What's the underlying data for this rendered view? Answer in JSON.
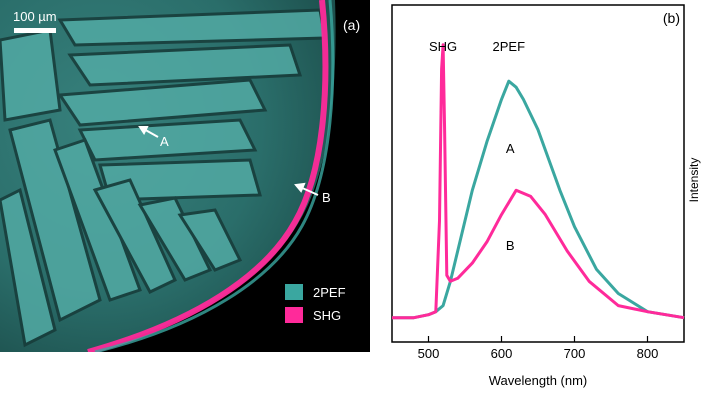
{
  "panel_a": {
    "label": "(a)",
    "scalebar_label": "100 µm",
    "arrows": [
      {
        "label": "A"
      },
      {
        "label": "B"
      }
    ],
    "legend": [
      {
        "label": "2PEF",
        "color": "#3aa7a0"
      },
      {
        "label": "SHG",
        "color": "#ff2a9a"
      }
    ],
    "colors": {
      "cyan": "#3aa7a0",
      "magenta": "#ff2a9a",
      "background": "#000000"
    }
  },
  "chart_data": {
    "type": "line",
    "panel_label": "(b)",
    "xlabel": "Wavelength (nm)",
    "ylabel": "Intensity",
    "xlim": [
      450,
      850
    ],
    "xticks": [
      "500",
      "600",
      "700",
      "800"
    ],
    "grid": false,
    "annotations": [
      {
        "text": "SHG",
        "x": 520
      },
      {
        "text": "2PEF",
        "x": 610
      },
      {
        "text": "A",
        "x": 612
      },
      {
        "text": "B",
        "x": 612
      }
    ],
    "series": [
      {
        "name": "A",
        "color": "#3aa7a0",
        "x": [
          450,
          480,
          500,
          510,
          520,
          530,
          540,
          560,
          580,
          600,
          610,
          620,
          630,
          650,
          680,
          700,
          730,
          760,
          800,
          850
        ],
        "y": [
          0.08,
          0.08,
          0.09,
          0.1,
          0.12,
          0.2,
          0.3,
          0.5,
          0.66,
          0.8,
          0.86,
          0.84,
          0.8,
          0.7,
          0.5,
          0.38,
          0.24,
          0.16,
          0.1,
          0.08
        ]
      },
      {
        "name": "B",
        "color": "#ff2a9a",
        "x": [
          450,
          480,
          500,
          510,
          515,
          518,
          520,
          522,
          525,
          530,
          540,
          560,
          580,
          600,
          620,
          640,
          660,
          690,
          720,
          760,
          800,
          850
        ],
        "y": [
          0.08,
          0.08,
          0.09,
          0.1,
          0.4,
          0.9,
          0.98,
          0.7,
          0.22,
          0.2,
          0.21,
          0.26,
          0.33,
          0.42,
          0.5,
          0.48,
          0.42,
          0.3,
          0.2,
          0.12,
          0.1,
          0.08
        ]
      }
    ]
  }
}
